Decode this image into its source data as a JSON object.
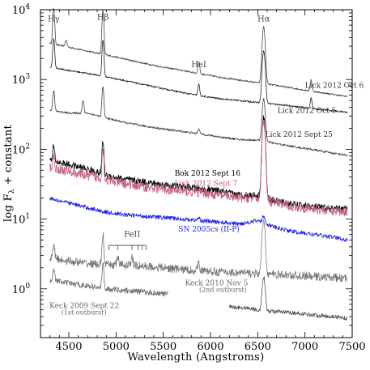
{
  "chart_data": {
    "type": "line",
    "title": "",
    "xlabel": "Wavelength (Angstroms)",
    "ylabel": "log F",
    "ylabel_sub": "λ",
    "ylabel_suffix": " + constant",
    "xlim": [
      4200,
      7500
    ],
    "ylim": [
      0.2,
      10000
    ],
    "yscale": "log",
    "x_ticks": [
      4500,
      5000,
      5500,
      6000,
      6500,
      7000,
      7500
    ],
    "x_tick_labels": [
      "4500",
      "5000",
      "5500",
      "6000",
      "6500",
      "7000",
      "7500"
    ],
    "y_ticks": [
      1,
      10,
      100,
      1000,
      10000
    ],
    "y_tick_bases": [
      "10",
      "10",
      "10",
      "10",
      "10"
    ],
    "y_tick_exps": [
      "0",
      "1",
      "2",
      "3",
      "4"
    ],
    "line_labels": [
      {
        "text": "Hγ",
        "wavelength": 4340,
        "y": 6800
      },
      {
        "text": "Hβ",
        "wavelength": 4861,
        "y": 7200
      },
      {
        "text": "HeI",
        "wavelength": 5876,
        "y": 1500
      },
      {
        "text": "Hα",
        "wavelength": 6563,
        "y": 6800
      },
      {
        "text": "FeII",
        "wavelength": 5170,
        "y": 5.6
      }
    ],
    "feii_marks": [
      4924,
      5018,
      5169,
      5235,
      5276,
      5317
    ],
    "series": [
      {
        "name": "Lick 2012 Oct 6",
        "color": "#4a4a4a",
        "x": [
          4300,
          4500,
          4700,
          4900,
          5100,
          5300,
          5500,
          5700,
          5900,
          6100,
          6300,
          6500,
          6700,
          6900,
          7100,
          7300,
          7450
        ],
        "y": [
          3300,
          2900,
          2550,
          2250,
          1950,
          1700,
          1500,
          1350,
          1200,
          1080,
          980,
          900,
          820,
          740,
          670,
          610,
          570
        ],
        "peaks": [
          {
            "x": 4340,
            "amp": 2.3
          },
          {
            "x": 4471,
            "amp": 0.25
          },
          {
            "x": 4861,
            "amp": 3.2
          },
          {
            "x": 5876,
            "amp": 0.5
          },
          {
            "x": 6563,
            "amp": 5.5
          },
          {
            "x": 7065,
            "amp": 0.45
          }
        ],
        "noise": 0.012
      },
      {
        "name": "Lick 2012 Oct 5",
        "color": "#222222",
        "x": [
          4300,
          4500,
          4700,
          4900,
          5100,
          5300,
          5500,
          5700,
          5900,
          6100,
          6300,
          6500,
          6700,
          6900,
          7100,
          7300,
          7450
        ],
        "y": [
          1500,
          1350,
          1220,
          1090,
          960,
          840,
          740,
          650,
          580,
          530,
          500,
          470,
          440,
          410,
          380,
          355,
          340
        ],
        "peaks": [
          {
            "x": 4340,
            "amp": 1.6
          },
          {
            "x": 4861,
            "amp": 2.3
          },
          {
            "x": 5876,
            "amp": 0.45
          },
          {
            "x": 6563,
            "amp": 4.6
          },
          {
            "x": 7065,
            "amp": 0.4
          }
        ],
        "noise": 0.012
      },
      {
        "name": "Lick 2012 Sept 25",
        "color": "#444444",
        "x": [
          4300,
          4500,
          4700,
          4900,
          5100,
          5300,
          5500,
          5700,
          5900,
          6100,
          6300,
          6500,
          6700,
          6900,
          7100,
          7300,
          7450
        ],
        "y": [
          360,
          330,
          330,
          280,
          240,
          215,
          195,
          180,
          165,
          150,
          138,
          135,
          120,
          108,
          98,
          88,
          82
        ],
        "peaks": [
          {
            "x": 4340,
            "amp": 1.0
          },
          {
            "x": 4650,
            "amp": 0.5
          },
          {
            "x": 4861,
            "amp": 1.7
          },
          {
            "x": 5876,
            "amp": 0.2
          },
          {
            "x": 6563,
            "amp": 3.0
          }
        ],
        "noise": 0.015
      },
      {
        "name": "Bok 2012 Sept 16",
        "color": "#000000",
        "x": [
          4300,
          4500,
          4700,
          4900,
          5100,
          5300,
          5500,
          5700,
          5900,
          6100,
          6300,
          6500,
          6700,
          6900,
          7100,
          7300,
          7450
        ],
        "y": [
          70,
          60,
          52,
          42,
          37,
          34,
          31,
          29,
          27,
          25,
          22,
          22,
          18,
          16,
          15,
          14,
          14
        ],
        "peaks": [
          {
            "x": 4340,
            "amp": 0.6
          },
          {
            "x": 4861,
            "amp": 2.0
          },
          {
            "x": 6563,
            "amp": 13.0
          }
        ],
        "noise": 0.05
      },
      {
        "name": "Lick 2012 Sept 7",
        "color": "#c2607e",
        "x": [
          4300,
          4500,
          4700,
          4900,
          5100,
          5300,
          5500,
          5700,
          5900,
          6100,
          6300,
          6500,
          6700,
          6900,
          7100,
          7300,
          7450
        ],
        "y": [
          55,
          48,
          42,
          36,
          32,
          29,
          27,
          25,
          24,
          22,
          20,
          20,
          17,
          15,
          14,
          13,
          13
        ],
        "peaks": [
          {
            "x": 4340,
            "amp": 0.5
          },
          {
            "x": 4861,
            "amp": 1.7
          },
          {
            "x": 6563,
            "amp": 13.0
          }
        ],
        "noise": 0.07
      },
      {
        "name": "SN 2005cs (II-P)",
        "color": "#1f1fe6",
        "x": [
          4300,
          4500,
          4700,
          4900,
          5100,
          5300,
          5500,
          5700,
          5900,
          6100,
          6300,
          6500,
          6700,
          6900,
          7100,
          7300,
          7450
        ],
        "y": [
          20,
          17,
          14.5,
          12.5,
          11.5,
          11,
          10.5,
          10,
          9.5,
          9,
          8.5,
          9.5,
          7.5,
          6.5,
          6,
          5.5,
          5
        ],
        "peaks": [
          {
            "x": 6563,
            "amp": 0.25
          },
          {
            "x": 5876,
            "amp": 0.1
          }
        ],
        "noise": 0.03
      },
      {
        "name": "Keck 2010 Nov 5",
        "note": "(2nd outburst)",
        "color": "#777777",
        "x": [
          4300,
          4500,
          4700,
          4900,
          5100,
          5300,
          5500,
          5700,
          5900,
          6100,
          6300,
          6500,
          6700,
          6900,
          7100,
          7300,
          7450
        ],
        "y": [
          2.8,
          2.5,
          2.3,
          2.2,
          2.2,
          2.1,
          2.0,
          1.9,
          1.8,
          1.75,
          1.7,
          1.65,
          1.6,
          1.55,
          1.5,
          1.45,
          1.4
        ],
        "peaks": [
          {
            "x": 4340,
            "amp": 0.6
          },
          {
            "x": 4861,
            "amp": 1.6
          },
          {
            "x": 5018,
            "amp": 0.35
          },
          {
            "x": 5169,
            "amp": 0.3
          },
          {
            "x": 5876,
            "amp": 0.4
          },
          {
            "x": 6563,
            "amp": 5.0
          }
        ],
        "noise": 0.06
      },
      {
        "name": "Keck 2009 Sept 22",
        "note": "(1st outburst)",
        "color": "#6e6e6e",
        "x": [
          4300,
          4500,
          4700,
          4900,
          5100,
          5300,
          5500,
          5550
        ],
        "y": [
          1.35,
          1.2,
          1.1,
          1.0,
          0.95,
          0.9,
          0.85,
          0.85
        ],
        "peaks": [
          {
            "x": 4340,
            "amp": 0.5
          },
          {
            "x": 4861,
            "amp": 1.2
          }
        ],
        "noise": 0.04
      },
      {
        "name": "",
        "color": "#555555",
        "x": [
          6200,
          6400,
          6500,
          6700,
          6900,
          7100,
          7300,
          7450
        ],
        "y": [
          0.55,
          0.53,
          0.5,
          0.47,
          0.45,
          0.42,
          0.4,
          0.38
        ],
        "peaks": [
          {
            "x": 6563,
            "amp": 2.0
          }
        ],
        "noise": 0.03
      }
    ],
    "labels": [
      {
        "text": "Lick 2012 Oct 6",
        "wavelength": 7000,
        "y": 760,
        "color": "#333333"
      },
      {
        "text": "Lick 2012 Oct 5",
        "wavelength": 6710,
        "y": 330,
        "color": "#333333"
      },
      {
        "text": "Lick 2012 Sept 25",
        "wavelength": 6580,
        "y": 150,
        "color": "#333333"
      },
      {
        "text": "Bok 2012 Sept 16",
        "wavelength": 5620,
        "y": 42,
        "color": "#000000"
      },
      {
        "text": "Lick 2012 Sept 7",
        "wavelength": 5620,
        "y": 30,
        "color": "#c2607e"
      },
      {
        "text": "SN 2005cs (II-P)",
        "wavelength": 5660,
        "y": 6.6,
        "color": "#1f1fe6"
      },
      {
        "text": "Keck 2010 Nov 5",
        "wavelength": 5730,
        "y": 1.12,
        "color": "#666666"
      },
      {
        "text": "(2nd outburst)",
        "wavelength": 5880,
        "y": 0.9,
        "color": "#666666",
        "small": true
      },
      {
        "text": "Keck 2009 Sept 22",
        "wavelength": 4295,
        "y": 0.53,
        "color": "#666666"
      },
      {
        "text": "(1st outburst)",
        "wavelength": 4420,
        "y": 0.43,
        "color": "#666666",
        "small": true
      }
    ]
  }
}
